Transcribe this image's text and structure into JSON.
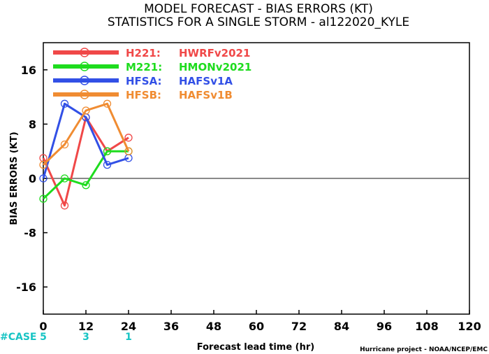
{
  "chart_data": {
    "type": "line",
    "title": "MODEL FORECAST - BIAS ERRORS (KT)",
    "subtitle": "STATISTICS FOR A SINGLE STORM - al122020_KYLE",
    "xlabel": "Forecast lead time (hr)",
    "ylabel": "BIAS ERRORS (KT)",
    "xlim": [
      0,
      120
    ],
    "ylim": [
      -20,
      20
    ],
    "x_ticks": [
      "0",
      "12",
      "24",
      "36",
      "48",
      "60",
      "72",
      "84",
      "96",
      "108",
      "120"
    ],
    "y_ticks": [
      "16",
      "8",
      "0",
      "-8",
      "-16"
    ],
    "legend_position": "top-left",
    "credit": "Hurricane project - NOAA/NCEP/EMC",
    "case_label": "#CASE",
    "cases": [
      {
        "x": 0,
        "label": "5"
      },
      {
        "x": 12,
        "label": "3"
      },
      {
        "x": 24,
        "label": "1"
      }
    ],
    "series": [
      {
        "name": "H221:",
        "desc": "HWRFv2021",
        "color": "#f04848",
        "x": [
          0,
          6,
          12,
          18,
          24
        ],
        "values": [
          3,
          -4,
          9,
          4,
          6
        ]
      },
      {
        "name": "M221:",
        "desc": "HMONv2021",
        "color": "#1edc1e",
        "x": [
          0,
          6,
          12,
          18,
          24
        ],
        "values": [
          -3,
          0,
          -1,
          4,
          4
        ]
      },
      {
        "name": "HFSA:",
        "desc": "HAFSv1A",
        "color": "#3250e6",
        "x": [
          0,
          6,
          12,
          18,
          24
        ],
        "values": [
          0,
          11,
          9,
          2,
          3
        ]
      },
      {
        "name": "HFSB:",
        "desc": "HAFSv1B",
        "color": "#f08c32",
        "x": [
          0,
          6,
          12,
          18,
          24
        ],
        "values": [
          2,
          5,
          10,
          11,
          4
        ]
      }
    ]
  }
}
